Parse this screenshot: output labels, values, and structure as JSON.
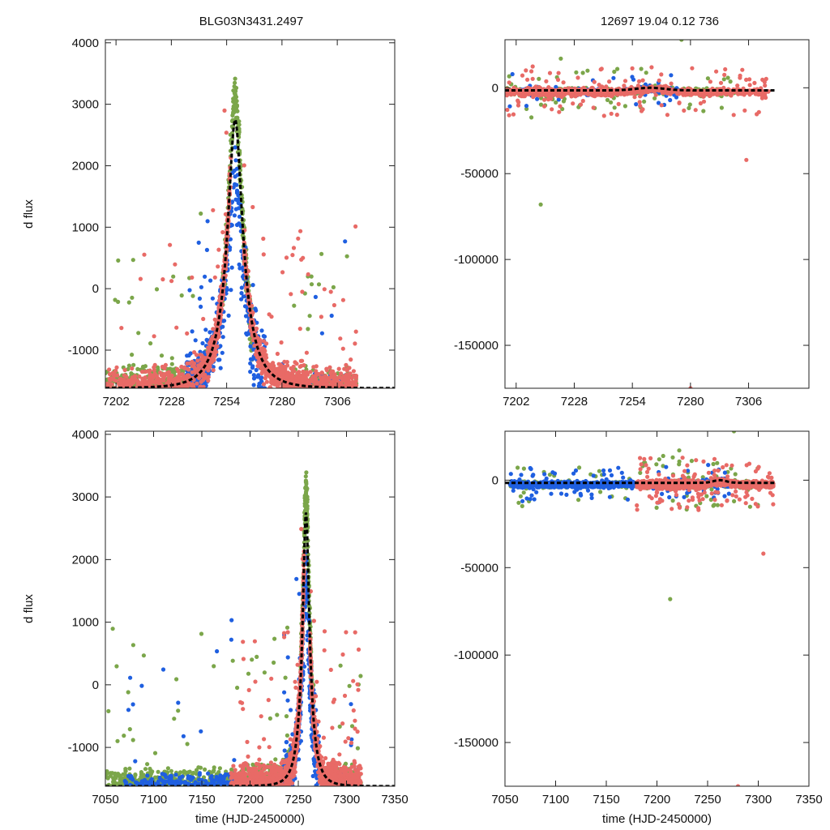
{
  "figure": {
    "title_left": "BLG03N3431.2497",
    "title_right": "12697  19.04  0.12  736",
    "colors": {
      "green": "#7ba64a",
      "blue": "#1f5fe0",
      "red": "#e86a66",
      "fit": "#000000"
    }
  },
  "chart_data": [
    {
      "id": "top-left",
      "type": "scatter",
      "title": "BLG03N3431.2497",
      "xlabel": "",
      "ylabel": "d flux",
      "xlim": [
        7197,
        7333
      ],
      "ylim": [
        -1620,
        4050
      ],
      "xticks": [
        7202,
        7228,
        7254,
        7280,
        7306
      ],
      "yticks": [
        -1000,
        0,
        1000,
        2000,
        3000,
        4000
      ],
      "series": [
        "green",
        "blue",
        "red",
        "fit"
      ],
      "fit": {
        "t0": 7258,
        "u0": 0.12,
        "tE": 19.04,
        "peak": 2750,
        "base": -1620
      }
    },
    {
      "id": "top-right",
      "type": "scatter",
      "title": "12697  19.04  0.12  736",
      "xlabel": "",
      "ylabel": "",
      "xlim": [
        7197,
        7333
      ],
      "ylim": [
        -175000,
        28000
      ],
      "xticks": [
        7202,
        7228,
        7254,
        7280,
        7306
      ],
      "yticks": [
        -150000,
        -100000,
        -50000,
        0
      ],
      "series": [
        "green",
        "blue",
        "red",
        "fit"
      ]
    },
    {
      "id": "bottom-left",
      "type": "scatter",
      "title": "",
      "xlabel": "time (HJD-2450000)",
      "ylabel": "d flux",
      "xlim": [
        7050,
        7350
      ],
      "ylim": [
        -1620,
        4050
      ],
      "xticks": [
        7050,
        7100,
        7150,
        7200,
        7250,
        7300,
        7350
      ],
      "yticks": [
        -1000,
        0,
        1000,
        2000,
        3000,
        4000
      ],
      "series": [
        "green",
        "blue",
        "red",
        "fit"
      ]
    },
    {
      "id": "bottom-right",
      "type": "scatter",
      "title": "",
      "xlabel": "time (HJD-2450000)",
      "ylabel": "",
      "xlim": [
        7050,
        7350
      ],
      "ylim": [
        -175000,
        28000
      ],
      "xticks": [
        7050,
        7100,
        7150,
        7200,
        7250,
        7300,
        7350
      ],
      "yticks": [
        -150000,
        -100000,
        -50000,
        0
      ],
      "series": [
        "green",
        "blue",
        "red",
        "fit"
      ]
    }
  ]
}
